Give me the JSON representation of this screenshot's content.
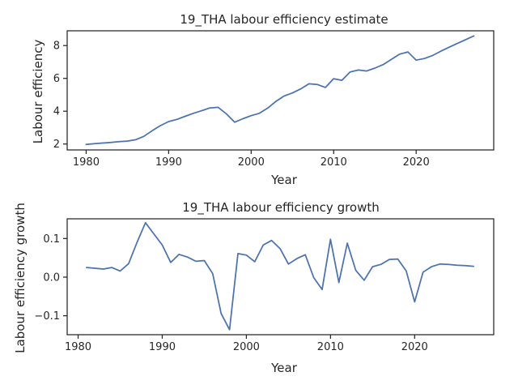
{
  "chart_data": [
    {
      "type": "line",
      "title": "19_THA labour efficiency estimate",
      "xlabel": "Year",
      "ylabel": "Labour efficiency",
      "xlim": [
        1977.7,
        2029.4
      ],
      "ylim": [
        1.64,
        8.9
      ],
      "xticks": [
        1980,
        1990,
        2000,
        2010,
        2020
      ],
      "xtick_labels": [
        "1980",
        "1990",
        "2000",
        "2010",
        "2020"
      ],
      "yticks": [
        2,
        4,
        6,
        8
      ],
      "ytick_labels": [
        "2",
        "4",
        "6",
        "8"
      ],
      "grid": false,
      "series": [
        {
          "color": "#4c72b0",
          "x": [
            1980,
            1981,
            1982,
            1983,
            1984,
            1985,
            1986,
            1987,
            1988,
            1989,
            1990,
            1991,
            1992,
            1993,
            1994,
            1995,
            1996,
            1997,
            1998,
            1999,
            2000,
            2001,
            2002,
            2003,
            2004,
            2005,
            2006,
            2007,
            2008,
            2009,
            2010,
            2011,
            2012,
            2013,
            2014,
            2015,
            2016,
            2017,
            2018,
            2019,
            2020,
            2021,
            2022,
            2023,
            2024,
            2025,
            2026,
            2027
          ],
          "y": [
            1.97,
            2.02,
            2.06,
            2.1,
            2.15,
            2.18,
            2.26,
            2.47,
            2.81,
            3.12,
            3.37,
            3.5,
            3.69,
            3.87,
            4.03,
            4.2,
            4.24,
            3.84,
            3.33,
            3.54,
            3.73,
            3.87,
            4.19,
            4.6,
            4.93,
            5.11,
            5.36,
            5.67,
            5.63,
            5.45,
            5.98,
            5.88,
            6.39,
            6.51,
            6.45,
            6.63,
            6.84,
            7.16,
            7.48,
            7.61,
            7.11,
            7.21,
            7.4,
            7.66,
            7.9,
            8.13,
            8.36,
            8.59
          ]
        }
      ]
    },
    {
      "type": "line",
      "title": "19_THA labour efficiency growth",
      "xlabel": "Year",
      "ylabel": "Labour efficiency growth",
      "xlim": [
        1978.7,
        2029.4
      ],
      "ylim": [
        -0.149,
        0.151
      ],
      "xticks": [
        1980,
        1990,
        2000,
        2010,
        2020
      ],
      "xtick_labels": [
        "1980",
        "1990",
        "2000",
        "2010",
        "2020"
      ],
      "yticks": [
        -0.1,
        0.0,
        0.1
      ],
      "ytick_labels": [
        "−0.1",
        "0.0",
        "0.1"
      ],
      "grid": false,
      "series": [
        {
          "color": "#4c72b0",
          "x": [
            1981,
            1982,
            1983,
            1984,
            1985,
            1986,
            1987,
            1988,
            1989,
            1990,
            1991,
            1992,
            1993,
            1994,
            1995,
            1996,
            1997,
            1998,
            1999,
            2000,
            2001,
            2002,
            2003,
            2004,
            2005,
            2006,
            2007,
            2008,
            2009,
            2010,
            2011,
            2012,
            2013,
            2014,
            2015,
            2016,
            2017,
            2018,
            2019,
            2020,
            2021,
            2022,
            2023,
            2024,
            2025,
            2026,
            2027
          ],
          "y": [
            0.025,
            0.023,
            0.021,
            0.025,
            0.016,
            0.035,
            0.09,
            0.141,
            0.112,
            0.083,
            0.038,
            0.059,
            0.052,
            0.041,
            0.043,
            0.009,
            -0.094,
            -0.136,
            0.061,
            0.057,
            0.04,
            0.083,
            0.095,
            0.074,
            0.034,
            0.048,
            0.058,
            -0.001,
            -0.032,
            0.098,
            -0.014,
            0.088,
            0.018,
            -0.008,
            0.027,
            0.033,
            0.046,
            0.047,
            0.016,
            -0.064,
            0.013,
            0.027,
            0.034,
            0.033,
            0.031,
            0.03,
            0.028
          ]
        }
      ]
    }
  ]
}
